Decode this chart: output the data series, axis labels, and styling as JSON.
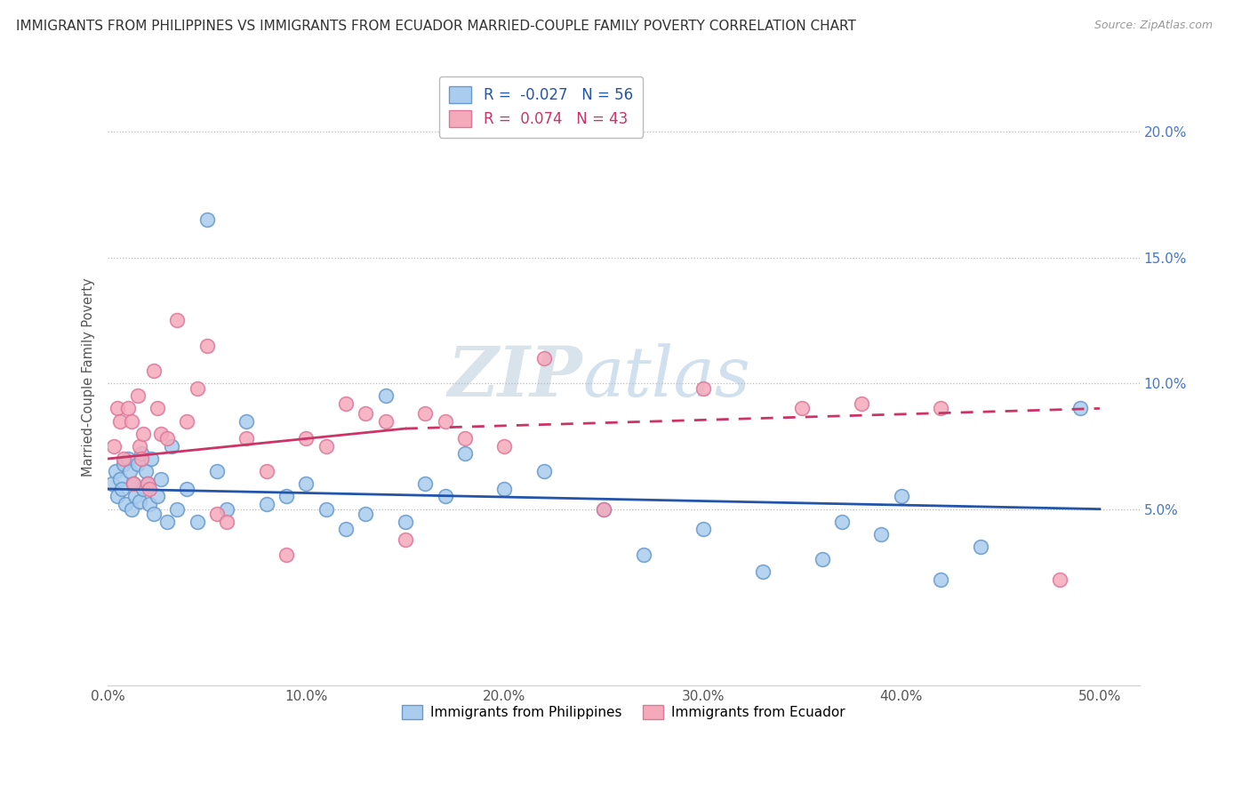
{
  "title": "IMMIGRANTS FROM PHILIPPINES VS IMMIGRANTS FROM ECUADOR MARRIED-COUPLE FAMILY POVERTY CORRELATION CHART",
  "source": "Source: ZipAtlas.com",
  "xlabel_vals": [
    0.0,
    10.0,
    20.0,
    30.0,
    40.0,
    50.0
  ],
  "ylabel": "Married-Couple Family Poverty",
  "ylabel_vals": [
    5.0,
    10.0,
    15.0,
    20.0
  ],
  "xlim": [
    0.0,
    52.0
  ],
  "ylim": [
    -2.0,
    22.5
  ],
  "philippines_color": "#aaccee",
  "ecuador_color": "#f5aabb",
  "philippines_edge": "#6699cc",
  "ecuador_edge": "#dd7799",
  "trend_blue": "#2255aa",
  "trend_pink": "#cc3366",
  "legend_r_blue": "-0.027",
  "legend_n_blue": "56",
  "legend_r_pink": "0.074",
  "legend_n_pink": "43",
  "watermark_zip": "ZIP",
  "watermark_atlas": "atlas",
  "philippines_x": [
    0.2,
    0.4,
    0.5,
    0.6,
    0.7,
    0.8,
    0.9,
    1.0,
    1.1,
    1.2,
    1.3,
    1.4,
    1.5,
    1.6,
    1.7,
    1.8,
    1.9,
    2.0,
    2.1,
    2.2,
    2.3,
    2.5,
    2.7,
    3.0,
    3.2,
    3.5,
    4.0,
    4.5,
    5.0,
    5.5,
    6.0,
    7.0,
    8.0,
    9.0,
    10.0,
    11.0,
    12.0,
    13.0,
    14.0,
    15.0,
    16.0,
    17.0,
    18.0,
    20.0,
    22.0,
    25.0,
    27.0,
    30.0,
    33.0,
    36.0,
    37.0,
    39.0,
    40.0,
    42.0,
    44.0,
    49.0
  ],
  "philippines_y": [
    6.0,
    6.5,
    5.5,
    6.2,
    5.8,
    6.8,
    5.2,
    7.0,
    6.5,
    5.0,
    6.0,
    5.5,
    6.8,
    5.3,
    7.2,
    5.8,
    6.5,
    6.0,
    5.2,
    7.0,
    4.8,
    5.5,
    6.2,
    4.5,
    7.5,
    5.0,
    5.8,
    4.5,
    16.5,
    6.5,
    5.0,
    8.5,
    5.2,
    5.5,
    6.0,
    5.0,
    4.2,
    4.8,
    9.5,
    4.5,
    6.0,
    5.5,
    7.2,
    5.8,
    6.5,
    5.0,
    3.2,
    4.2,
    2.5,
    3.0,
    4.5,
    4.0,
    5.5,
    2.2,
    3.5,
    9.0
  ],
  "ecuador_x": [
    0.3,
    0.5,
    0.6,
    0.8,
    1.0,
    1.2,
    1.3,
    1.5,
    1.6,
    1.7,
    1.8,
    2.0,
    2.1,
    2.3,
    2.5,
    2.7,
    3.0,
    3.5,
    4.0,
    4.5,
    5.0,
    5.5,
    6.0,
    7.0,
    8.0,
    9.0,
    10.0,
    11.0,
    12.0,
    13.0,
    14.0,
    15.0,
    16.0,
    17.0,
    18.0,
    20.0,
    22.0,
    25.0,
    30.0,
    35.0,
    38.0,
    42.0,
    48.0
  ],
  "ecuador_y": [
    7.5,
    9.0,
    8.5,
    7.0,
    9.0,
    8.5,
    6.0,
    9.5,
    7.5,
    7.0,
    8.0,
    6.0,
    5.8,
    10.5,
    9.0,
    8.0,
    7.8,
    12.5,
    8.5,
    9.8,
    11.5,
    4.8,
    4.5,
    7.8,
    6.5,
    3.2,
    7.8,
    7.5,
    9.2,
    8.8,
    8.5,
    3.8,
    8.8,
    8.5,
    7.8,
    7.5,
    11.0,
    5.0,
    9.8,
    9.0,
    9.2,
    9.0,
    2.2
  ],
  "blue_trend_y0": 5.8,
  "blue_trend_y1": 5.0,
  "pink_trend_y0": 7.0,
  "pink_trend_y_solid_end": 8.2,
  "pink_trend_y1": 9.0,
  "pink_solid_end_x": 15.0
}
